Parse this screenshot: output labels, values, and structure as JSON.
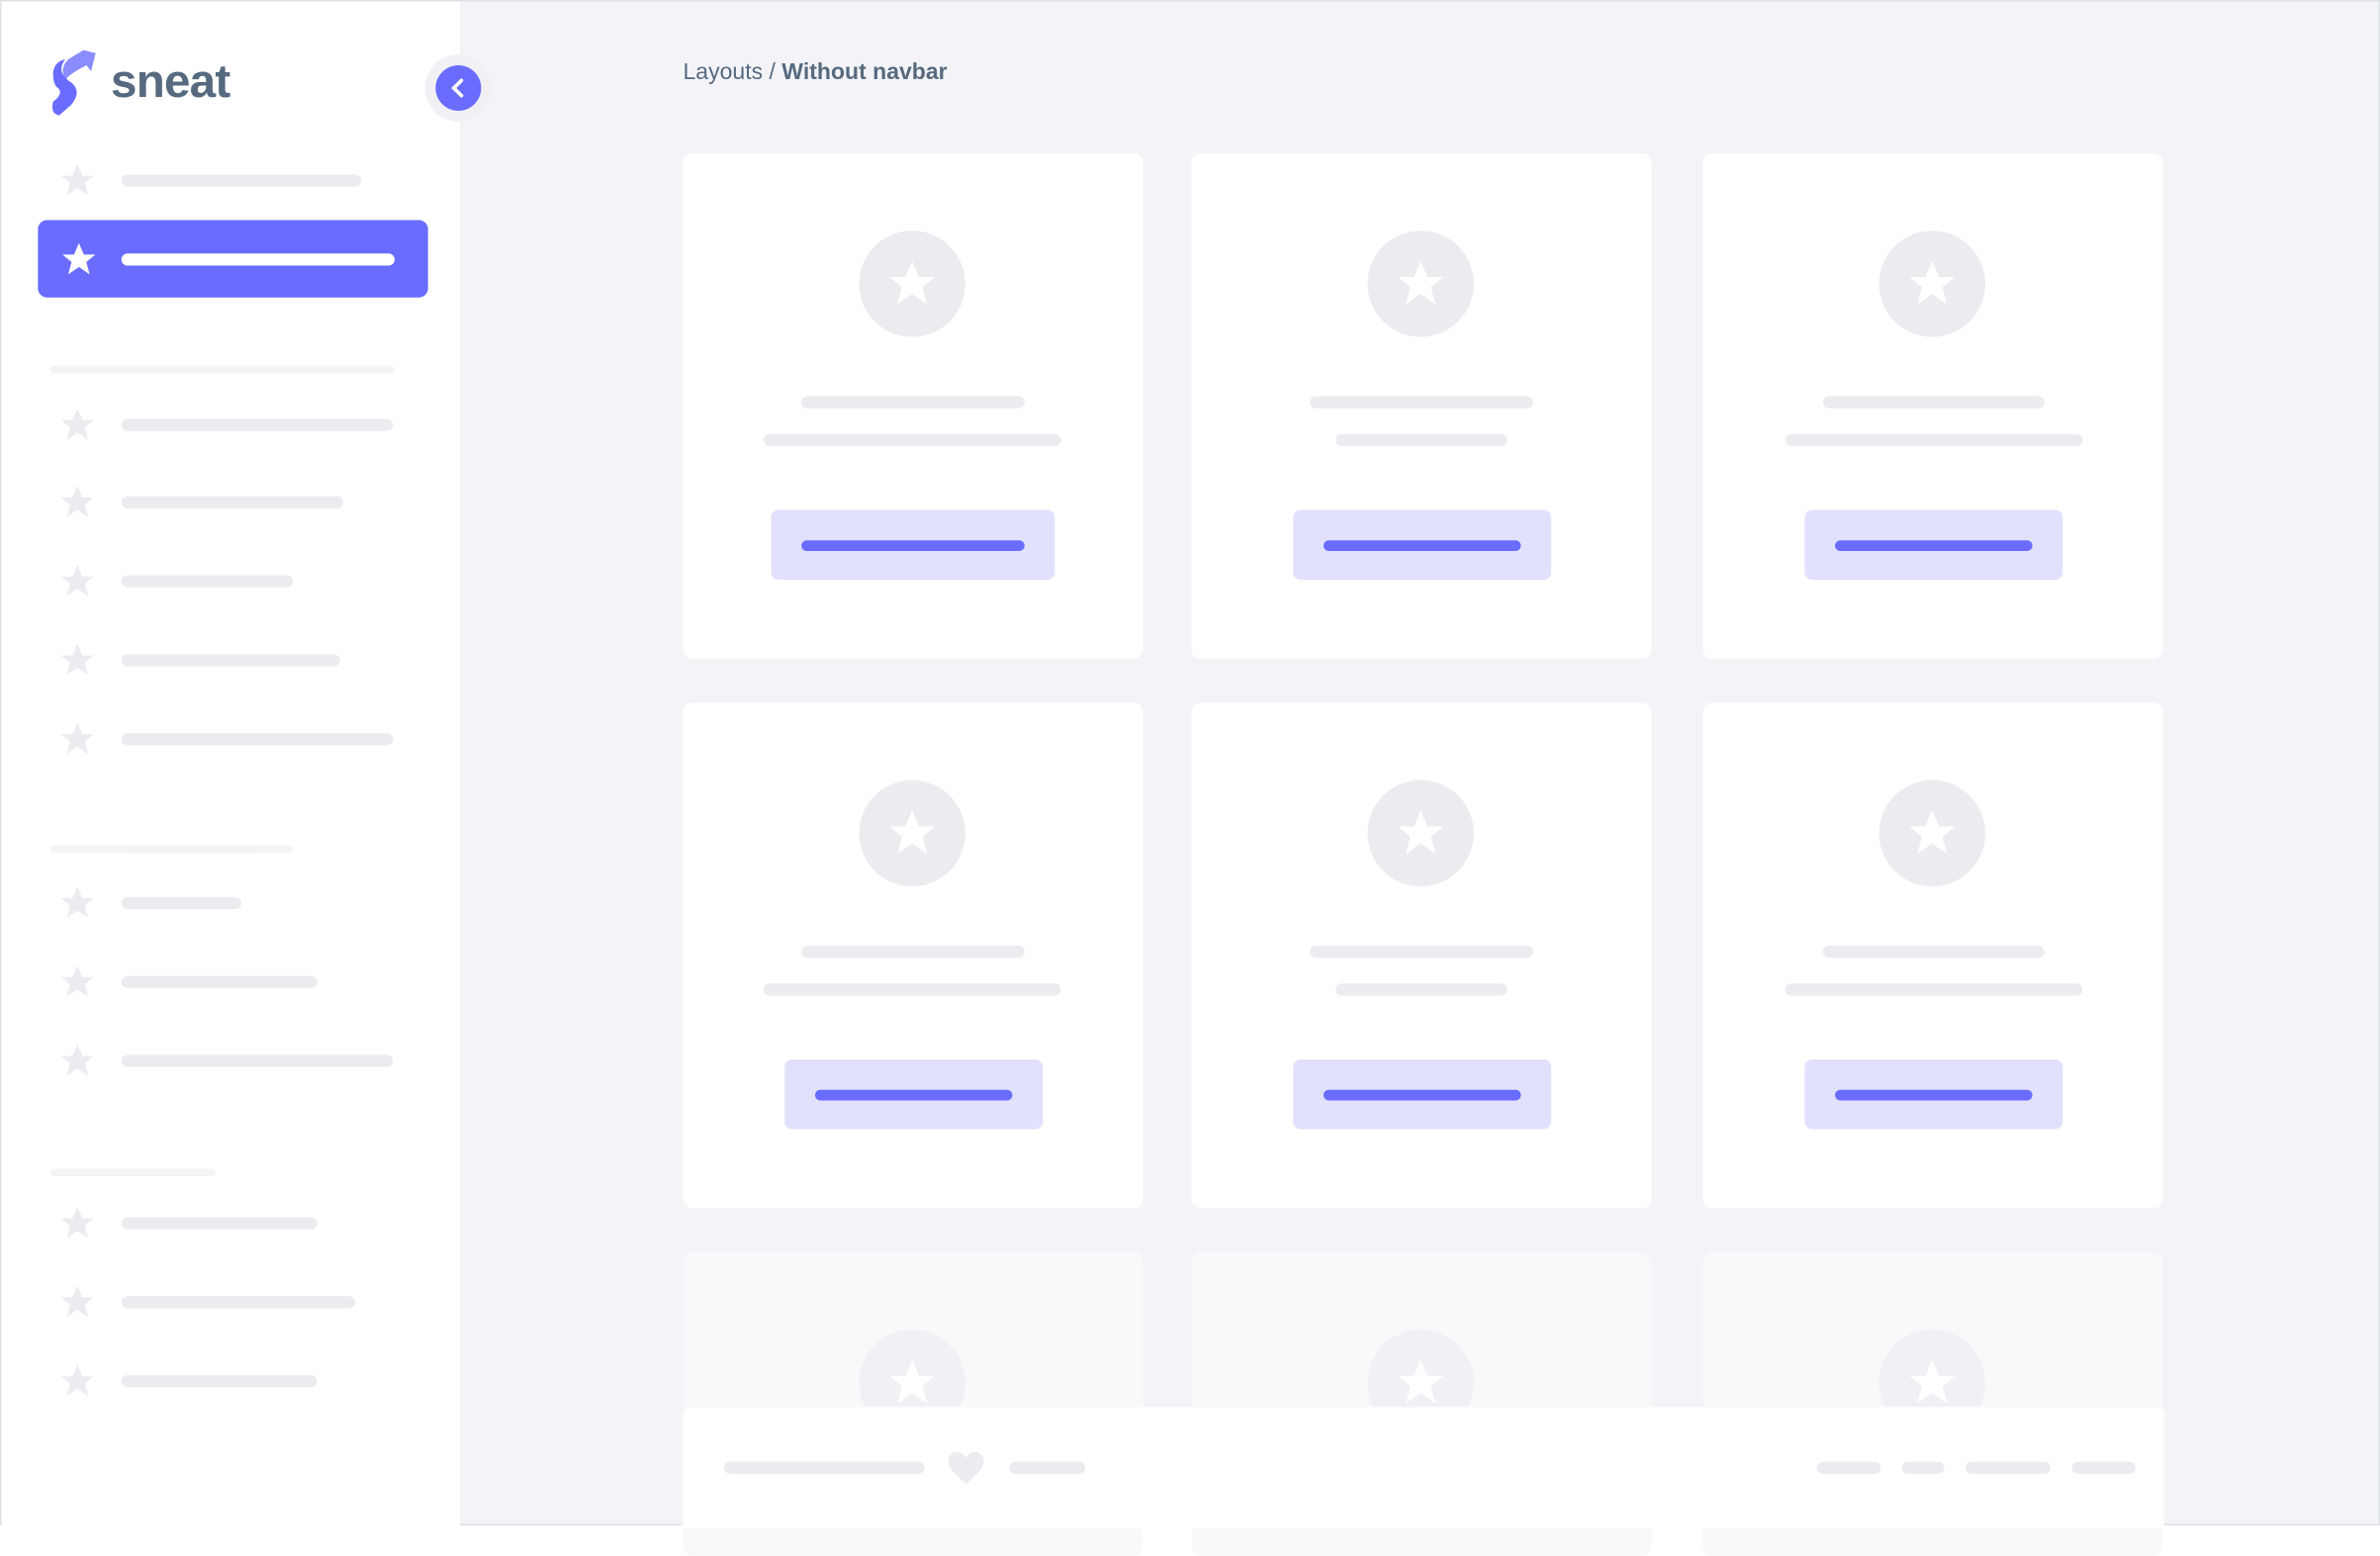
{
  "brand": {
    "name": "sneat",
    "color": "#696cff"
  },
  "breadcrumb": {
    "parent": "Layouts",
    "separator": " / ",
    "current": "Without navbar"
  },
  "sidebar": {
    "toggle_icon": "chevron-left-icon",
    "active_index": 1
  },
  "colors": {
    "accent": "#696cff",
    "accent_light": "#e1e1fd",
    "background": "#f4f4f8",
    "skeleton": "#ebecf0",
    "text": "#566a7f"
  }
}
